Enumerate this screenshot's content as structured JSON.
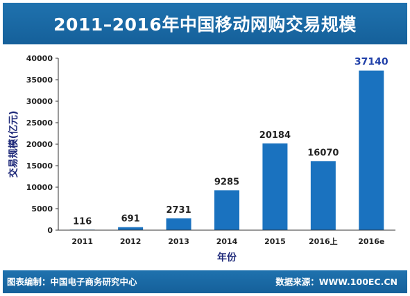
{
  "header": {
    "title": "2011–2016年中国移动网购交易规模"
  },
  "footer": {
    "left_text": "图表编制：中国电子商务研究中心",
    "right_text": "数据来源：WWW.100EC.CN"
  },
  "colors": {
    "banner": "#1a69a4",
    "bar": "#1a72bf",
    "axis_title": "#1f2a7a",
    "last_label": "#1f3fa8"
  },
  "chart_data": {
    "type": "bar",
    "categories": [
      "2011",
      "2012",
      "2013",
      "2014",
      "2015",
      "2016上",
      "2016e"
    ],
    "values": [
      116,
      691,
      2731,
      9285,
      20184,
      16070,
      37140
    ],
    "data_labels": [
      "116",
      "691",
      "2731",
      "9285",
      "20184",
      "16070",
      "37140"
    ],
    "xlabel": "年份",
    "ylabel": "交易规模(亿元)",
    "ylim": [
      0,
      40000
    ],
    "yticks": [
      0,
      5000,
      10000,
      15000,
      20000,
      25000,
      30000,
      35000,
      40000
    ],
    "ytick_labels": [
      "0",
      "5000",
      "10000",
      "15000",
      "20000",
      "25000",
      "30000",
      "35000",
      "40000"
    ],
    "grid": false,
    "legend": "none"
  }
}
